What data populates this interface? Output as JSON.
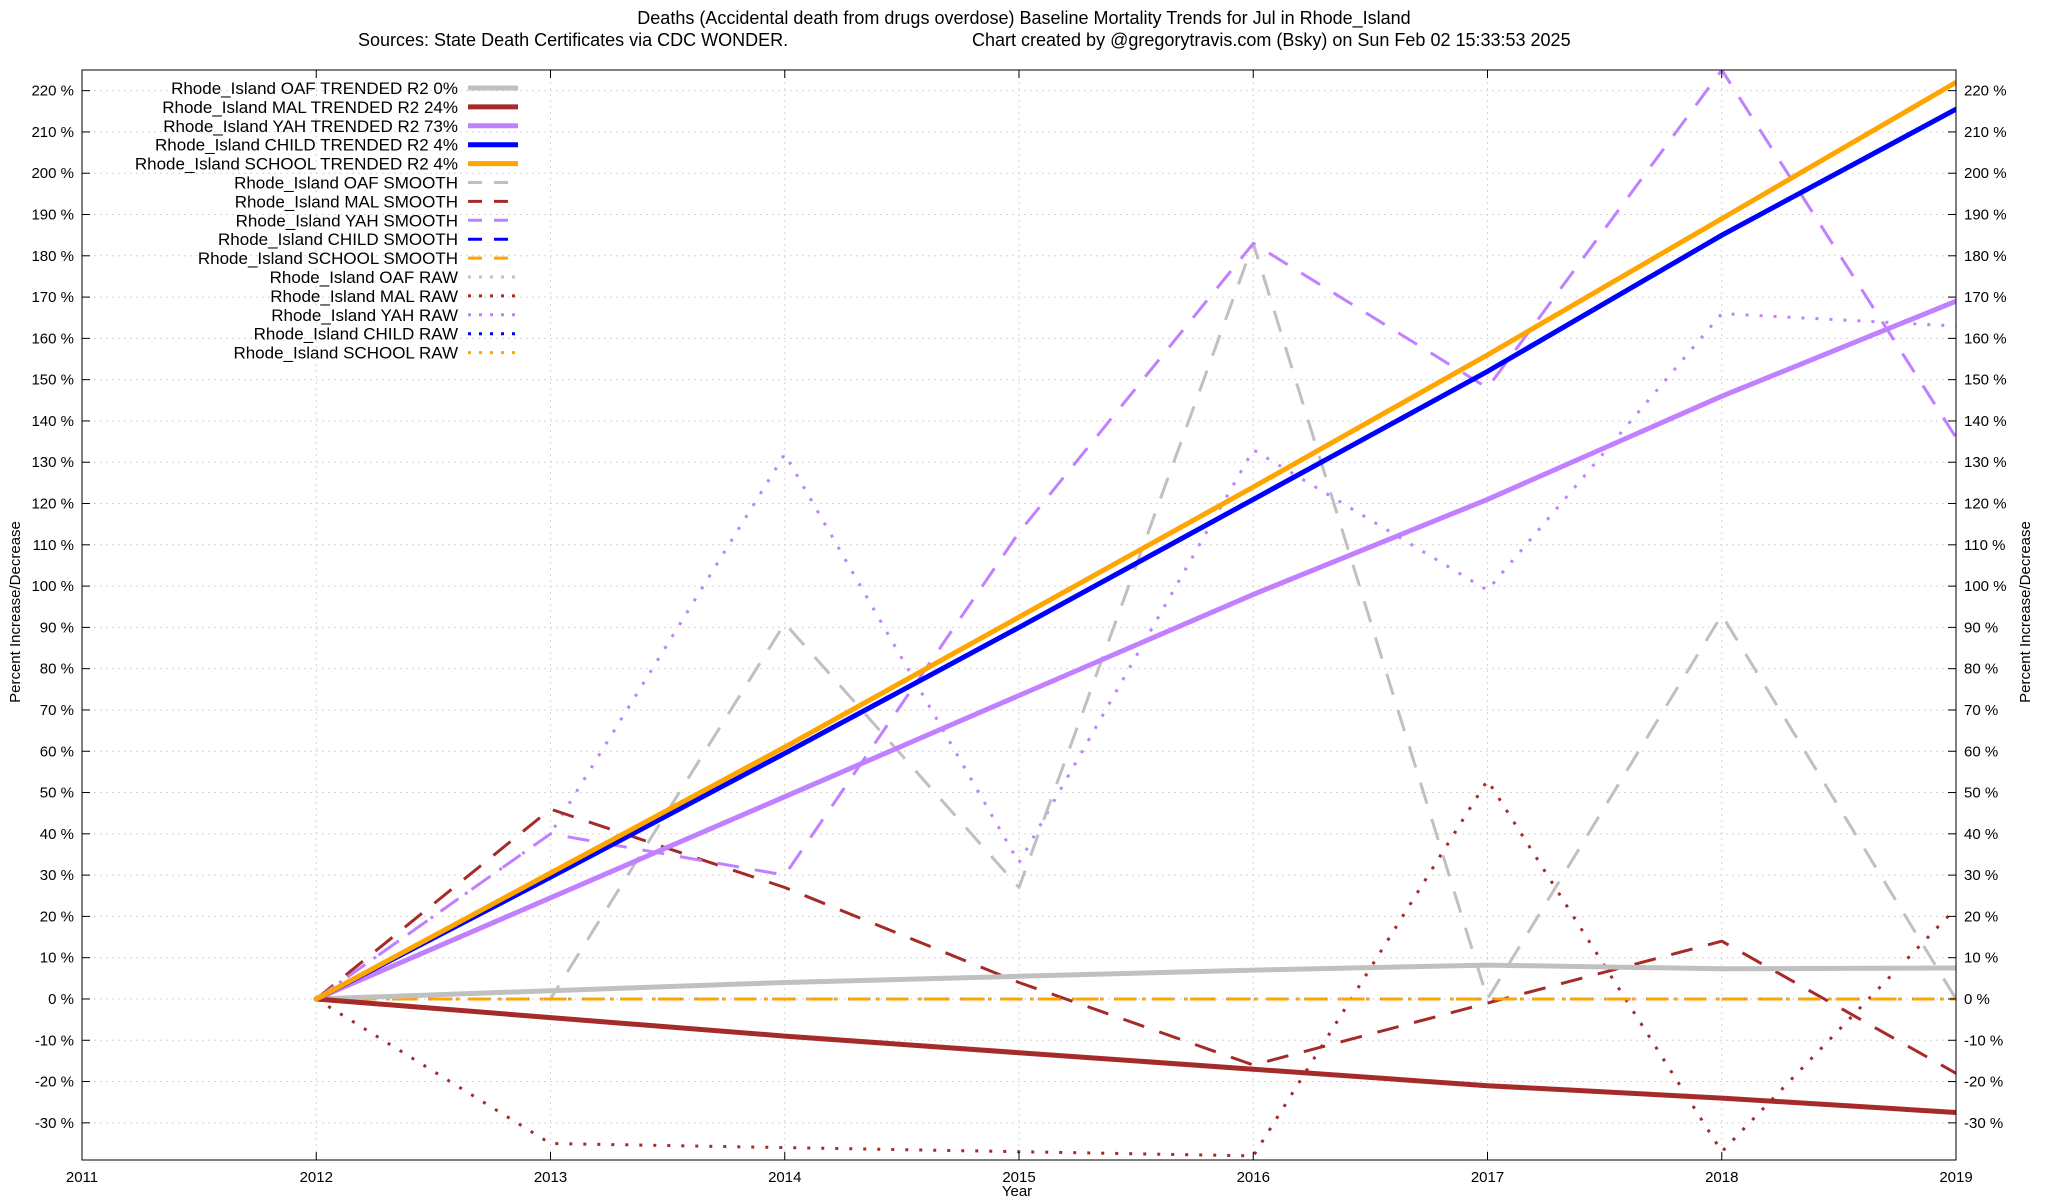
{
  "chart_data": {
    "type": "line",
    "title_line1": "Deaths (Accidental death from drugs overdose)  Baseline Mortality Trends for Jul in Rhode_Island",
    "title_line2_left": "Sources: State Death Certificates via CDC WONDER.",
    "title_line2_right": "Chart created by @gregorytravis.com (Bsky) on Sun Feb 02 15:33:53 2025",
    "xlabel": "Year",
    "ylabel_left": "Percent Increase/Decrease",
    "ylabel_right": "Percent Increase/Decrease",
    "xlim": [
      2011,
      2019
    ],
    "ylim": [
      -39,
      225
    ],
    "x_ticks": [
      "2011",
      "2012",
      "2013",
      "2014",
      "2015",
      "2016",
      "2017",
      "2018",
      "2019"
    ],
    "y_ticks": [
      -30,
      -20,
      -10,
      0,
      10,
      20,
      30,
      40,
      50,
      60,
      70,
      80,
      90,
      100,
      110,
      120,
      130,
      140,
      150,
      160,
      170,
      180,
      190,
      200,
      210,
      220
    ],
    "y_tick_labels": [
      "-30 %",
      "-20 %",
      "-10 %",
      "0 %",
      "10 %",
      "20 %",
      "30 %",
      "40 %",
      "50 %",
      "60 %",
      "70 %",
      "80 %",
      "90 %",
      "100 %",
      "110 %",
      "120 %",
      "130 %",
      "140 %",
      "150 %",
      "160 %",
      "170 %",
      "180 %",
      "190 %",
      "200 %",
      "210 %",
      "220 %"
    ],
    "grid": true,
    "legend_position": "top-left",
    "series": [
      {
        "name": "Rhode_Island OAF TRENDED R2  0%",
        "style": "solid",
        "color": "#c0c0c0",
        "points": [
          [
            2012,
            0
          ],
          [
            2013,
            2
          ],
          [
            2014,
            4
          ],
          [
            2015,
            5.5
          ],
          [
            2016,
            7
          ],
          [
            2017,
            8.2
          ],
          [
            2018,
            7.3
          ],
          [
            2019,
            7.5
          ]
        ]
      },
      {
        "name": "Rhode_Island MAL TRENDED R2  24%",
        "style": "solid",
        "color": "#a52a2a",
        "points": [
          [
            2012,
            0
          ],
          [
            2013,
            -4.5
          ],
          [
            2014,
            -9
          ],
          [
            2015,
            -13
          ],
          [
            2016,
            -17
          ],
          [
            2017,
            -21
          ],
          [
            2018,
            -24
          ],
          [
            2019,
            -27.5
          ]
        ]
      },
      {
        "name": "Rhode_Island YAH TRENDED R2  73%",
        "style": "solid",
        "color": "#c080ff",
        "points": [
          [
            2012,
            0
          ],
          [
            2013,
            24.5
          ],
          [
            2014,
            49
          ],
          [
            2015,
            73.5
          ],
          [
            2016,
            98
          ],
          [
            2017,
            121
          ],
          [
            2018,
            146
          ],
          [
            2019,
            169
          ]
        ]
      },
      {
        "name": "Rhode_Island CHILD TRENDED R2  4%",
        "style": "solid",
        "color": "#0000ff",
        "points": [
          [
            2012,
            0
          ],
          [
            2013,
            29.5
          ],
          [
            2014,
            59.5
          ],
          [
            2015,
            90
          ],
          [
            2016,
            121
          ],
          [
            2017,
            152
          ],
          [
            2018,
            185
          ],
          [
            2019,
            215.5
          ]
        ]
      },
      {
        "name": "Rhode_Island SCHOOL TRENDED R2  4%",
        "style": "solid",
        "color": "#ffa500",
        "points": [
          [
            2012,
            0
          ],
          [
            2013,
            30.5
          ],
          [
            2014,
            61
          ],
          [
            2015,
            92.5
          ],
          [
            2016,
            124
          ],
          [
            2017,
            156
          ],
          [
            2018,
            189
          ],
          [
            2019,
            222
          ]
        ]
      },
      {
        "name": "Rhode_Island OAF SMOOTH",
        "style": "dashed",
        "color": "#c0c0c0",
        "points": [
          [
            2012,
            0
          ],
          [
            2013,
            0
          ],
          [
            2014,
            91
          ],
          [
            2015,
            27
          ],
          [
            2016,
            183
          ],
          [
            2017,
            0
          ],
          [
            2018,
            93
          ],
          [
            2019,
            0
          ]
        ]
      },
      {
        "name": "Rhode_Island MAL SMOOTH",
        "style": "dashed",
        "color": "#a52a2a",
        "points": [
          [
            2012,
            0
          ],
          [
            2013,
            46
          ],
          [
            2014,
            27
          ],
          [
            2015,
            4
          ],
          [
            2016,
            -16
          ],
          [
            2017,
            -1
          ],
          [
            2018,
            14
          ],
          [
            2019,
            -18
          ]
        ]
      },
      {
        "name": "Rhode_Island YAH SMOOTH",
        "style": "dashed",
        "color": "#c080ff",
        "points": [
          [
            2012,
            0
          ],
          [
            2013,
            40
          ],
          [
            2014,
            30
          ],
          [
            2015,
            113
          ],
          [
            2016,
            183
          ],
          [
            2017,
            148
          ],
          [
            2018,
            225
          ],
          [
            2019,
            136
          ]
        ]
      },
      {
        "name": "Rhode_Island CHILD SMOOTH",
        "style": "dashed",
        "color": "#0000ff",
        "points": [
          [
            2012,
            0
          ],
          [
            2013,
            0
          ],
          [
            2014,
            0
          ],
          [
            2015,
            0
          ],
          [
            2016,
            0
          ],
          [
            2017,
            0
          ],
          [
            2018,
            0
          ],
          [
            2019,
            0
          ]
        ]
      },
      {
        "name": "Rhode_Island SCHOOL SMOOTH",
        "style": "dashed",
        "color": "#ffa500",
        "points": [
          [
            2012,
            0
          ],
          [
            2013,
            0
          ],
          [
            2014,
            0
          ],
          [
            2015,
            0
          ],
          [
            2016,
            0
          ],
          [
            2017,
            0
          ],
          [
            2018,
            0
          ],
          [
            2019,
            0
          ]
        ]
      },
      {
        "name": "Rhode_Island OAF RAW",
        "style": "dotted",
        "color": "#c0c0c0",
        "points": [
          [
            2012,
            0
          ],
          [
            2013,
            0
          ],
          [
            2014,
            0
          ],
          [
            2015,
            0
          ],
          [
            2016,
            0
          ],
          [
            2017,
            0
          ],
          [
            2018,
            0
          ],
          [
            2019,
            0
          ]
        ]
      },
      {
        "name": "Rhode_Island MAL RAW",
        "style": "dotted",
        "color": "#a52a2a",
        "points": [
          [
            2012,
            0
          ],
          [
            2013,
            -35
          ],
          [
            2014,
            -36
          ],
          [
            2015,
            -37
          ],
          [
            2016,
            -38
          ],
          [
            2017,
            53
          ],
          [
            2018,
            -37
          ],
          [
            2019,
            22
          ]
        ]
      },
      {
        "name": "Rhode_Island YAH RAW",
        "style": "dotted",
        "color": "#c080ff",
        "points": [
          [
            2012,
            0
          ],
          [
            2013,
            40
          ],
          [
            2014,
            132
          ],
          [
            2015,
            33
          ],
          [
            2016,
            133
          ],
          [
            2017,
            99
          ],
          [
            2018,
            166
          ],
          [
            2019,
            163
          ]
        ]
      },
      {
        "name": "Rhode_Island CHILD RAW",
        "style": "dotted",
        "color": "#0000ff",
        "points": [
          [
            2012,
            0
          ],
          [
            2013,
            0
          ],
          [
            2014,
            0
          ],
          [
            2015,
            0
          ],
          [
            2016,
            0
          ],
          [
            2017,
            0
          ],
          [
            2018,
            0
          ],
          [
            2019,
            0
          ]
        ]
      },
      {
        "name": "Rhode_Island SCHOOL RAW",
        "style": "dotted",
        "color": "#ffa500",
        "points": [
          [
            2012,
            0
          ],
          [
            2013,
            0
          ],
          [
            2014,
            0
          ],
          [
            2015,
            0
          ],
          [
            2016,
            0
          ],
          [
            2017,
            0
          ],
          [
            2018,
            0
          ],
          [
            2019,
            0
          ]
        ]
      }
    ]
  }
}
